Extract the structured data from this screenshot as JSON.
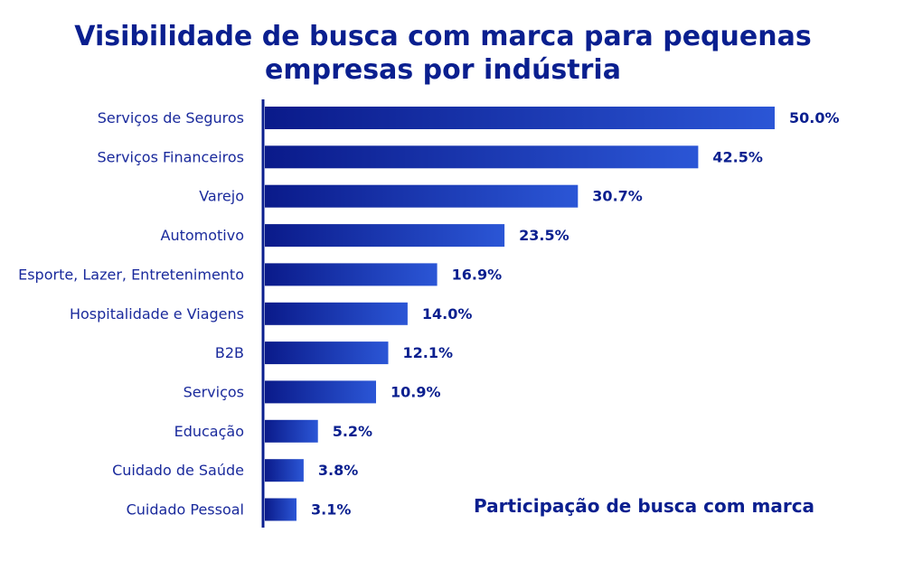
{
  "chart_data": {
    "type": "bar",
    "orientation": "horizontal",
    "title": "Visibilidade de busca com marca para pequenas empresas por indústria",
    "xlabel": "Participação de busca com marca",
    "ylabel": "",
    "categories": [
      "Serviços de Seguros",
      "Serviços Financeiros",
      "Varejo",
      "Automotivo",
      "Esporte, Lazer, Entretenimento",
      "Hospitalidade e Viagens",
      "B2B",
      "Serviços",
      "Educação",
      "Cuidado de Saúde",
      "Cuidado Pessoal"
    ],
    "values": [
      50.0,
      42.5,
      30.7,
      23.5,
      16.9,
      14.0,
      12.1,
      10.9,
      5.2,
      3.8,
      3.1
    ],
    "value_labels": [
      "50.0%",
      "42.5%",
      "30.7%",
      "23.5%",
      "16.9%",
      "14.0%",
      "12.1%",
      "10.9%",
      "5.2%",
      "3.8%",
      "3.1%"
    ],
    "xlim": [
      0,
      50
    ],
    "grid": false,
    "legend": "none",
    "colors": {
      "bar_start": "#0a1a8a",
      "bar_end": "#2b56d6",
      "text": "#0a1f8f",
      "axis": "#0a1f8f"
    }
  }
}
